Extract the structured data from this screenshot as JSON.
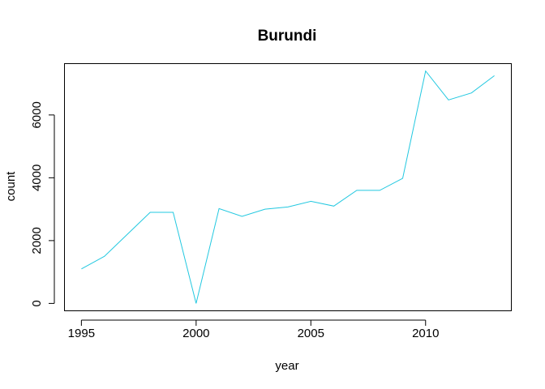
{
  "chart_data": {
    "type": "line",
    "title": "Burundi",
    "xlabel": "year",
    "ylabel": "count",
    "x": [
      1995,
      1996,
      1997,
      1998,
      1999,
      2000,
      2001,
      2002,
      2003,
      2004,
      2005,
      2006,
      2007,
      2008,
      2009,
      2010,
      2011,
      2012,
      2013
    ],
    "series": [
      {
        "values": [
          1100,
          1500,
          2200,
          2900,
          2900,
          0,
          3020,
          2770,
          3000,
          3070,
          3250,
          3100,
          3600,
          3600,
          3980,
          7400,
          6480,
          6700,
          7250
        ],
        "color": "#22c8e0"
      }
    ],
    "xlim": [
      1994.28,
      2013.72
    ],
    "ylim": [
      -222,
      7622
    ],
    "xticks": [
      1995,
      2000,
      2005,
      2010
    ],
    "yticks": [
      0,
      2000,
      4000,
      6000
    ],
    "grid": false,
    "legend": "none"
  }
}
